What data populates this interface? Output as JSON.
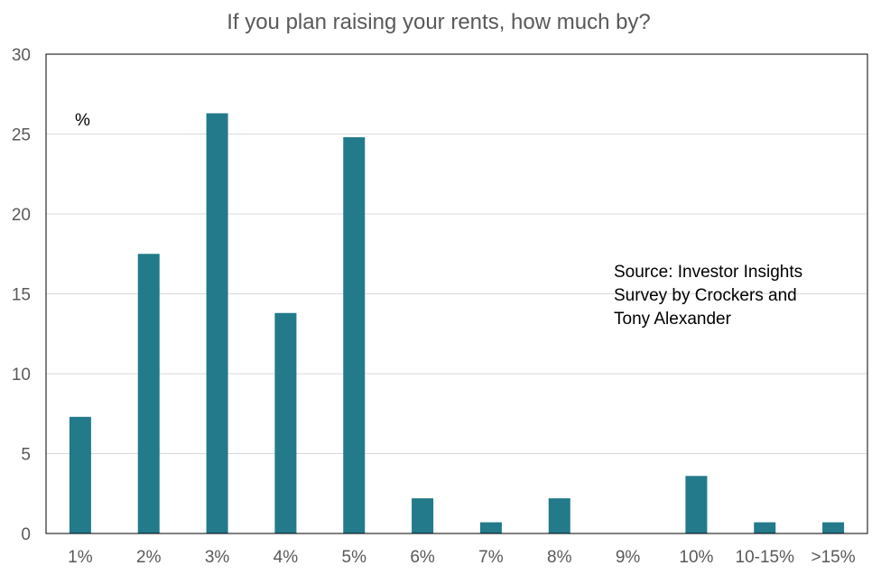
{
  "chart_data": {
    "type": "bar",
    "title": "If you plan raising your rents, how much by?",
    "unit_label": "%",
    "annotation": [
      "Source: Investor Insights",
      "Survey by Crockers and",
      "Tony Alexander"
    ],
    "categories": [
      "1%",
      "2%",
      "3%",
      "4%",
      "5%",
      "6%",
      "7%",
      "8%",
      "9%",
      "10%",
      "10-15%",
      ">15%"
    ],
    "values": [
      7.3,
      17.5,
      26.3,
      13.8,
      24.8,
      2.2,
      0.7,
      2.2,
      0.0,
      3.6,
      0.7,
      0.7
    ],
    "ylim": [
      0,
      30
    ],
    "yticks": [
      0,
      5,
      10,
      15,
      20,
      25,
      30
    ],
    "grid": true,
    "colors": {
      "bar": "#227A8A",
      "grid": "#D9D9D9",
      "axis_text": "#595959"
    }
  }
}
